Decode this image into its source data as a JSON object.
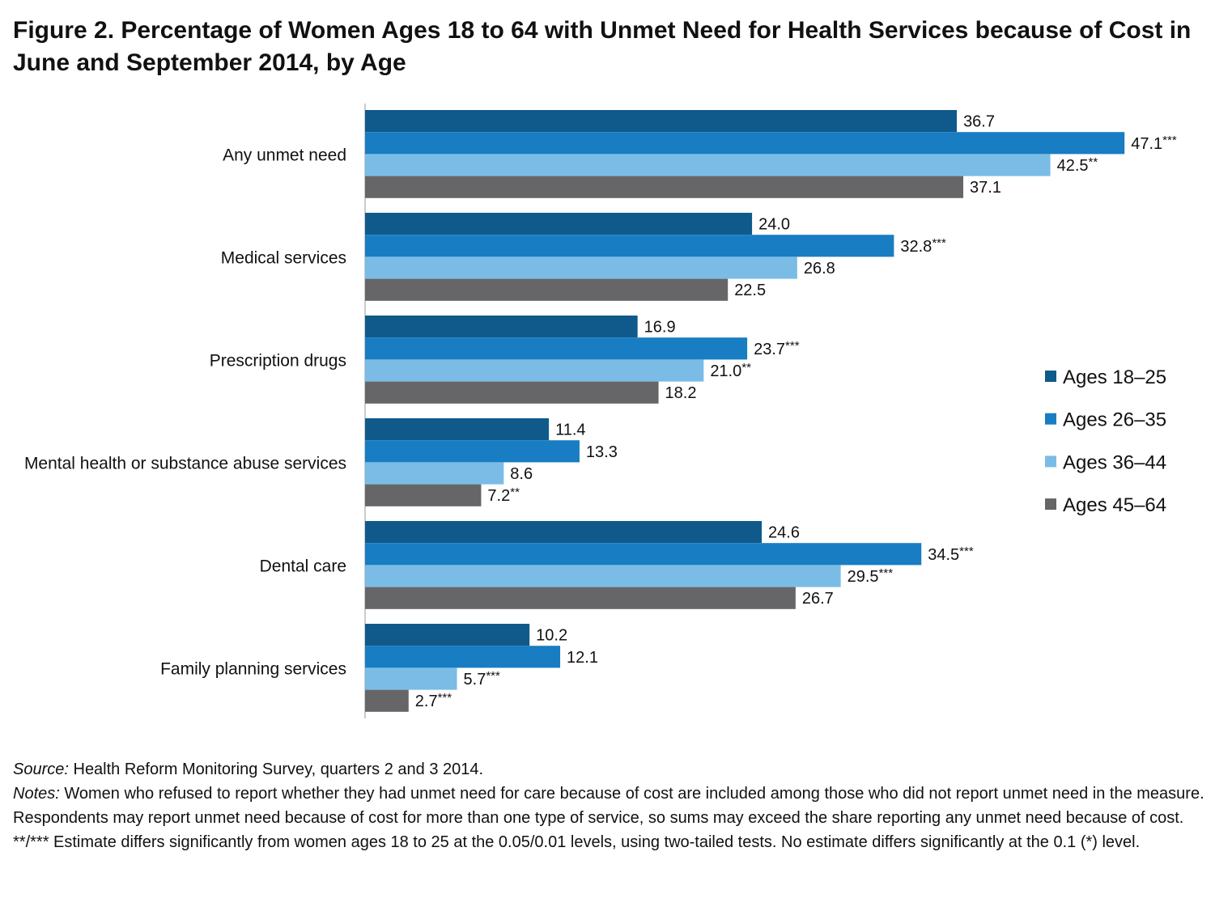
{
  "chart_data": {
    "type": "bar",
    "orientation": "horizontal",
    "title": "Figure 2. Percentage of Women Ages 18 to 64 with Unmet Need for Health Services because of Cost in June and September 2014, by Age",
    "categories": [
      "Any unmet need",
      "Medical services",
      "Prescription drugs",
      "Mental health or substance abuse services",
      "Dental care",
      "Family planning services"
    ],
    "series": [
      {
        "name": "Ages 18–25",
        "color": "#0f5a8b",
        "values": [
          36.7,
          24.0,
          16.9,
          11.4,
          24.6,
          10.2
        ],
        "significance": [
          "",
          "",
          "",
          "",
          "",
          ""
        ]
      },
      {
        "name": "Ages 26–35",
        "color": "#187dc2",
        "values": [
          47.1,
          32.8,
          23.7,
          13.3,
          34.5,
          12.1
        ],
        "significance": [
          "***",
          "***",
          "***",
          "",
          "***",
          ""
        ]
      },
      {
        "name": "Ages 36–44",
        "color": "#7abce6",
        "values": [
          42.5,
          26.8,
          21.0,
          8.6,
          29.5,
          5.7
        ],
        "significance": [
          "**",
          "",
          "**",
          "",
          "***",
          "***"
        ]
      },
      {
        "name": "Ages 45–64",
        "color": "#666668",
        "values": [
          37.1,
          22.5,
          18.2,
          7.2,
          26.7,
          2.7
        ],
        "significance": [
          "",
          "",
          "",
          "**",
          "",
          "***"
        ]
      }
    ],
    "xlim": [
      0,
      50
    ],
    "grid": false,
    "legend": "right"
  },
  "notes": {
    "source_label": "Source:",
    "source": " Health Reform Monitoring Survey, quarters 2 and 3 2014.",
    "notes_label": "Notes:",
    "notes": " Women who refused to report whether they had unmet need for care because of cost are included among those who did not report unmet need in the measure. Respondents may report unmet need because of cost for more than one type of service, so sums may exceed the share reporting any unmet need because of cost.",
    "significance": "**/*** Estimate differs significantly from women ages 18 to 25 at the 0.05/0.01 levels, using two-tailed tests. No estimate differs significantly at the 0.1 (*) level."
  }
}
